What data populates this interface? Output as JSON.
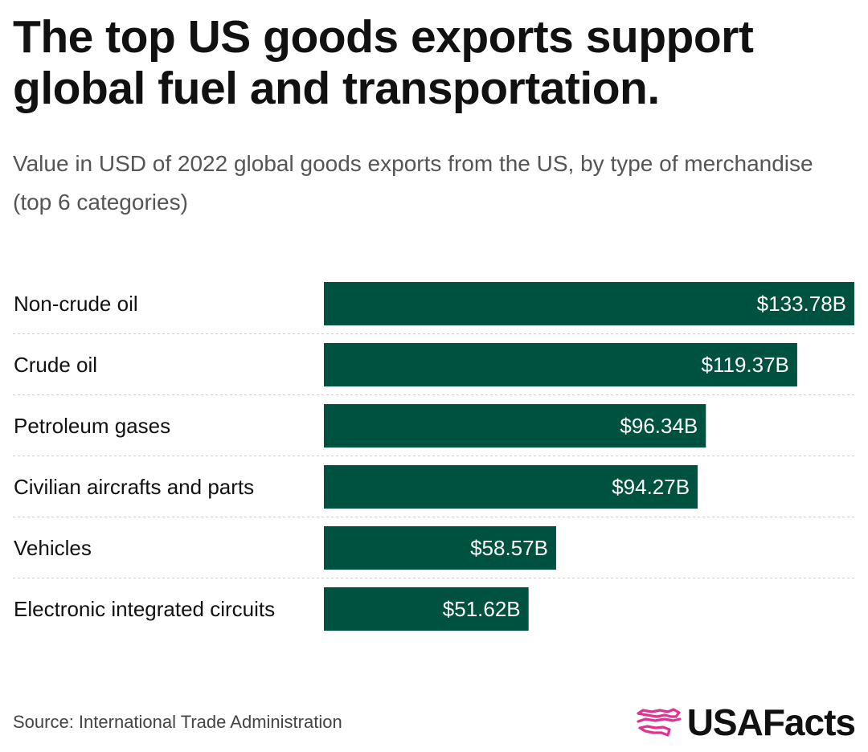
{
  "title": "The top US goods exports support global fuel and transportation.",
  "subtitle": "Value in USD of 2022 global goods exports from the US, by type of merchandise (top 6 categories)",
  "source": "Source: International Trade Administration",
  "brand": {
    "name": "USAFacts",
    "icon": "usa-map-logo-icon",
    "icon_color": "#e0338f"
  },
  "colors": {
    "bar": "#005240",
    "bar_label": "#ffffff",
    "divider": "#cccccc"
  },
  "chart_data": {
    "type": "bar",
    "orientation": "horizontal",
    "categories": [
      "Non-crude oil",
      "Crude oil",
      "Petroleum gases",
      "Civilian aircrafts and parts",
      "Vehicles",
      "Electronic integrated circuits"
    ],
    "values": [
      133.78,
      119.37,
      96.34,
      94.27,
      58.57,
      51.62
    ],
    "value_labels": [
      "$133.78B",
      "$119.37B",
      "$96.34B",
      "$94.27B",
      "$58.57B",
      "$51.62B"
    ],
    "unit": "USD billions",
    "xlim": [
      0,
      133.78
    ],
    "grid": false
  }
}
